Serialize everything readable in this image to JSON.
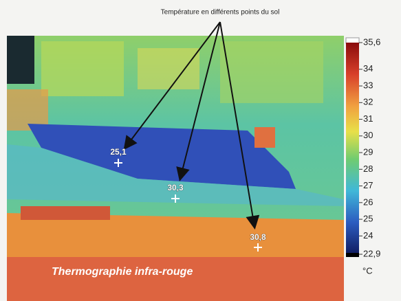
{
  "annotation": "Température en différents points du sol",
  "points": [
    {
      "label": "25,1"
    },
    {
      "label": "30,3"
    },
    {
      "label": "30,8"
    }
  ],
  "colorbar": {
    "lim": [
      22.9,
      35.6
    ],
    "ticks": [
      {
        "value": 35.6,
        "label": "35,6"
      },
      34,
      33,
      32,
      31,
      30,
      29,
      28,
      27,
      26,
      25,
      24,
      {
        "value": 22.9,
        "label": "22,9"
      }
    ],
    "unit": "°C"
  },
  "caption": "Thermographie infra-rouge"
}
